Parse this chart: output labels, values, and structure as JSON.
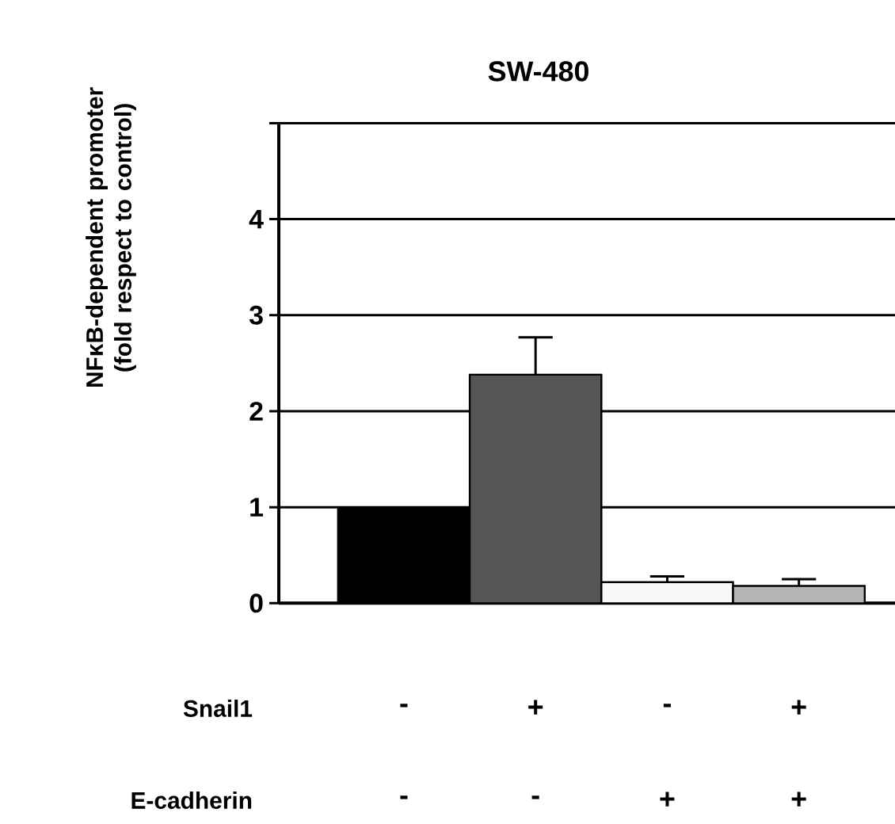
{
  "chart_data": {
    "type": "bar",
    "title": "SW-480",
    "ylabel": "NFκB-dependent promoter (fold respect to control)",
    "categories": [
      null,
      null,
      null,
      null
    ],
    "values": [
      1.0,
      2.38,
      0.22,
      0.18
    ],
    "colors": [
      "#000000",
      "#555555",
      "#f8f8f8",
      "#b4b4b4"
    ],
    "errors": [
      null,
      [
        2.38,
        2.77
      ],
      [
        0.22,
        0.28
      ],
      [
        0.18,
        0.25
      ]
    ],
    "ylim": [
      0,
      5
    ],
    "yticks": [
      0,
      1,
      2,
      3,
      4,
      {
        "value": 5,
        "label": null
      }
    ],
    "grid": "y",
    "annotations": [
      "Snail1",
      "-",
      "+",
      "-",
      "+",
      "E-cadherin",
      "-",
      "-",
      "+",
      "+"
    ]
  }
}
